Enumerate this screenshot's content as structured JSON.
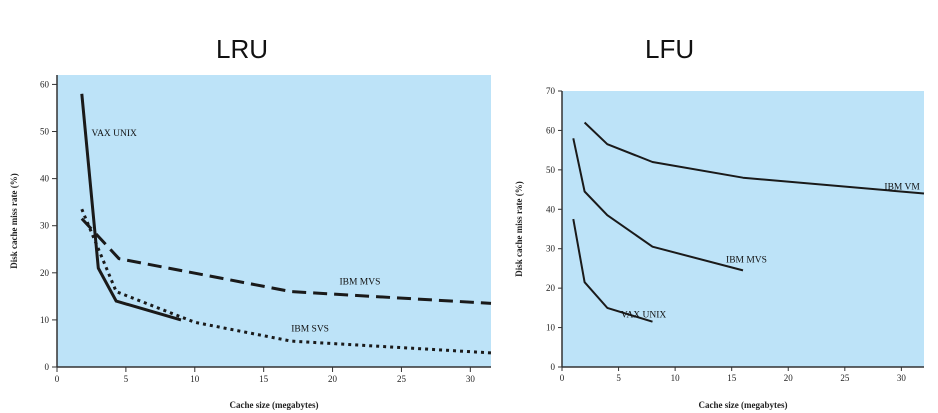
{
  "colors": {
    "plot_bg": "#bde3f8",
    "line": "#1a1a1a"
  },
  "chart_data": [
    {
      "id": "lru",
      "heading": "LRU",
      "type": "line",
      "xlabel": "Cache size (megabytes)",
      "ylabel": "Disk cache miss rate (%)",
      "xlim": [
        0,
        31.5
      ],
      "ylim": [
        0,
        62
      ],
      "xticks": [
        0,
        5,
        10,
        15,
        20,
        25,
        30
      ],
      "yticks": [
        0,
        10,
        20,
        30,
        40,
        50,
        60
      ],
      "grid": false,
      "series": [
        {
          "name": "VAX UNIX",
          "style": "solid",
          "x": [
            1.8,
            3.0,
            4.3,
            9.0
          ],
          "y": [
            58,
            21,
            14,
            10
          ],
          "label_at": [
            2.5,
            49
          ]
        },
        {
          "name": "IBM MVS",
          "style": "dashed",
          "x": [
            1.8,
            4.5,
            17,
            31.5
          ],
          "y": [
            31.5,
            23,
            16,
            13.5
          ],
          "label_at": [
            20.5,
            17.5
          ]
        },
        {
          "name": "IBM SVS",
          "style": "dotted",
          "x": [
            1.8,
            4.3,
            10,
            17,
            31.5
          ],
          "y": [
            33.5,
            16,
            9.5,
            5.5,
            3
          ],
          "label_at": [
            17,
            7.5
          ]
        }
      ]
    },
    {
      "id": "lfu",
      "heading": "LFU",
      "type": "line",
      "xlabel": "Cache size (megabytes)",
      "ylabel": "Disk cache miss rate (%)",
      "xlim": [
        0,
        32
      ],
      "ylim": [
        0,
        70
      ],
      "xticks": [
        0,
        5,
        10,
        15,
        20,
        25,
        30
      ],
      "yticks": [
        0,
        10,
        20,
        30,
        40,
        50,
        60,
        70
      ],
      "grid": false,
      "series": [
        {
          "name": "IBM VM",
          "style": "solid",
          "x": [
            2,
            4,
            8,
            16,
            32
          ],
          "y": [
            62,
            56.5,
            52,
            48,
            44
          ],
          "label_at": [
            28.5,
            45
          ]
        },
        {
          "name": "IBM MVS",
          "style": "solid",
          "x": [
            1,
            2,
            4,
            8,
            16
          ],
          "y": [
            58,
            44.5,
            38.5,
            30.5,
            24.5
          ],
          "label_at": [
            14.5,
            26.5
          ]
        },
        {
          "name": "VAX UNIX",
          "style": "solid",
          "x": [
            1,
            2,
            4,
            8
          ],
          "y": [
            37.5,
            21.5,
            15,
            11.5
          ],
          "label_at": [
            5.2,
            12.5
          ]
        }
      ]
    }
  ]
}
